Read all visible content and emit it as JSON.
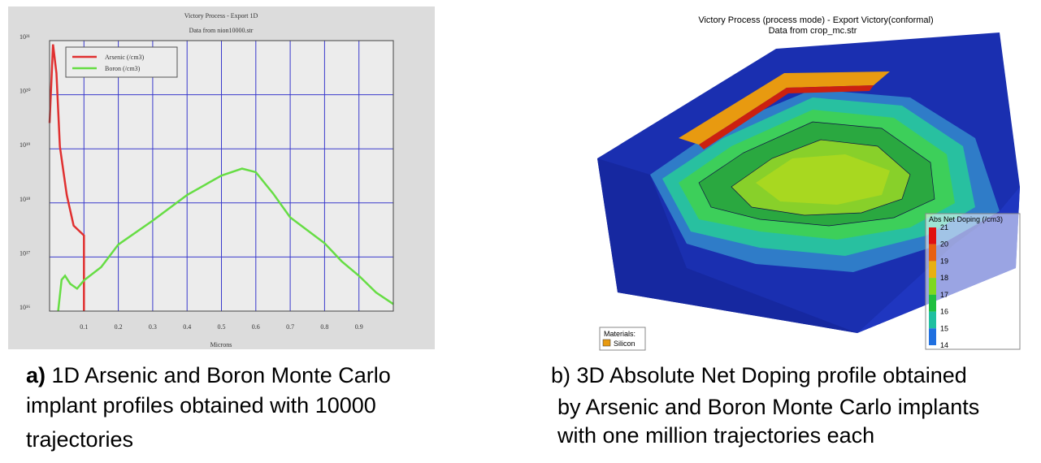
{
  "chart_data": {
    "type": "line",
    "title": "Victory Process - Export 1D",
    "subtitle": "Data from nion10000.str",
    "x_label": "Microns",
    "log_scale": "y",
    "grid": true,
    "legend": "upper left",
    "xlim": [
      0,
      1
    ],
    "xticks": [
      0.1,
      0.2,
      0.3,
      0.4,
      0.5,
      0.6,
      0.7,
      0.8,
      0.9
    ],
    "ylim": [
      1e+16,
      1e+21
    ],
    "yticks": [
      {
        "value": 1e+16,
        "label": "10¹⁶"
      },
      {
        "value": 1e+17,
        "label": "10¹⁷"
      },
      {
        "value": 1e+18,
        "label": "10¹⁸"
      },
      {
        "value": 1e+19,
        "label": "10¹⁹"
      },
      {
        "value": 1e+20,
        "label": "10²⁰"
      },
      {
        "value": 1e+21,
        "label": "10²¹"
      }
    ],
    "series": [
      {
        "name": "Arsenic (/cm3)",
        "color": "#e03030",
        "x": [
          0.0,
          0.01,
          0.02,
          0.03,
          0.05,
          0.07,
          0.1,
          0.1
        ],
        "values": [
          3e+19,
          8.5e+20,
          2.5e+20,
          1.1e+19,
          1.4e+18,
          3.8e+17,
          2.5e+17,
          1e+16
        ]
      },
      {
        "name": "Boron (/cm3)",
        "color": "#66dd44",
        "x": [
          0.025,
          0.035,
          0.045,
          0.06,
          0.08,
          0.1,
          0.15,
          0.2,
          0.3,
          0.4,
          0.5,
          0.56,
          0.6,
          0.65,
          0.7,
          0.8,
          0.85,
          0.9,
          0.95,
          1.0
        ],
        "values": [
          1e+16,
          3.8e+16,
          4.5e+16,
          3.2e+16,
          2.6e+16,
          3.7e+16,
          6.5e+16,
          1.7e+17,
          4.7e+17,
          1.4e+18,
          3.2e+18,
          4.3e+18,
          3.7e+18,
          1.5e+18,
          5.4e+17,
          1.8e+17,
          8.3e+16,
          4.5e+16,
          2.2e+16,
          1.35e+16
        ]
      }
    ]
  },
  "panel_b": {
    "title": "Victory Process  (process mode) - Export Victory(conformal)",
    "subtitle": "Data from crop_mc.str",
    "colorbar": {
      "title": "Abs Net Doping (/cm3)",
      "ticks": [
        21,
        20,
        19,
        18,
        17,
        16,
        15,
        14
      ]
    },
    "materials": {
      "title": "Materials:",
      "items": [
        "Silicon"
      ]
    }
  },
  "captions": {
    "a": {
      "label": "a)",
      "lines": [
        " 1D Arsenic and Boron Monte Carlo",
        "implant profiles obtained with 10000",
        "trajectories"
      ]
    },
    "b": {
      "lines": [
        "b)  3D Absolute Net Doping profile obtained",
        "by Arsenic and Boron Monte Carlo implants",
        "with one million trajectories each"
      ]
    }
  }
}
